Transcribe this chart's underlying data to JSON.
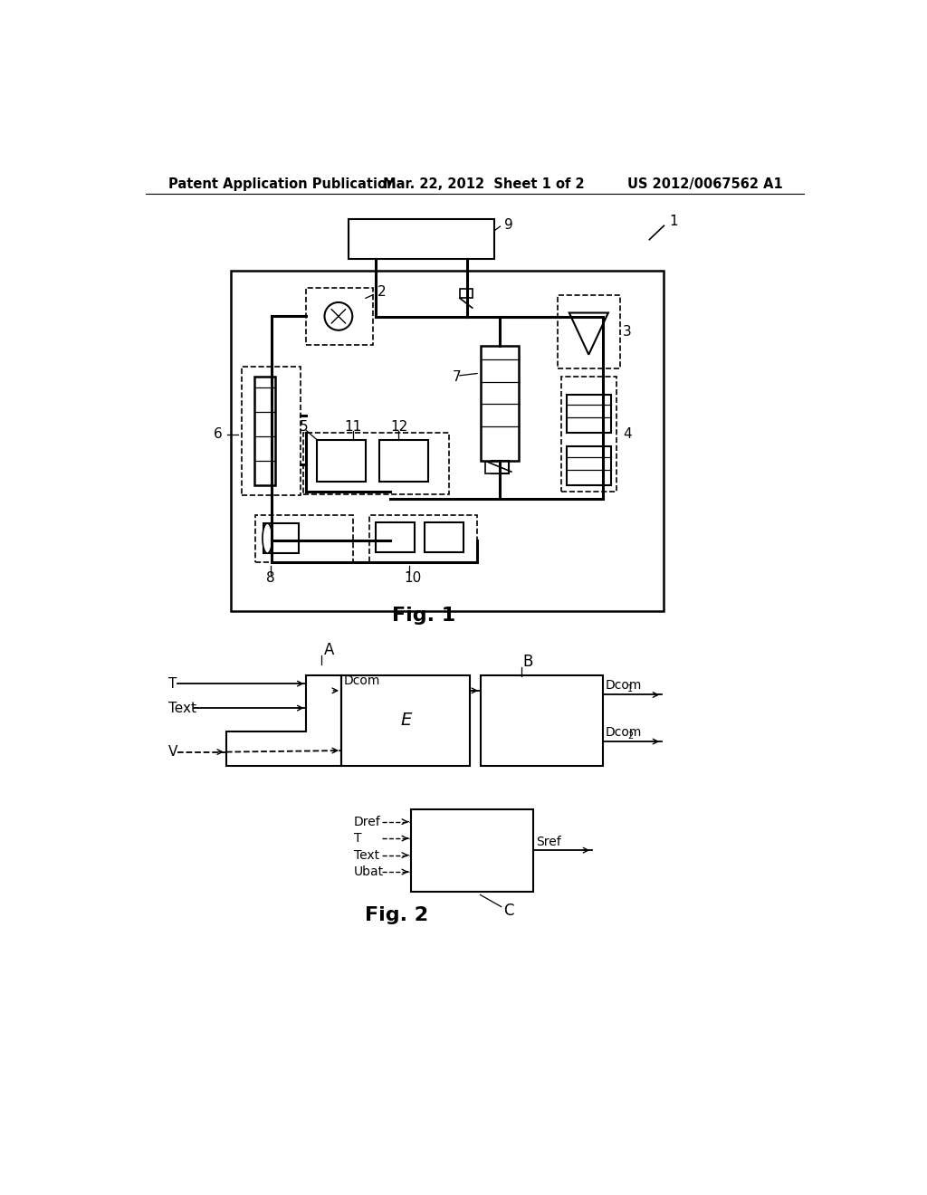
{
  "bg_color": "#ffffff",
  "header_left": "Patent Application Publication",
  "header_center": "Mar. 22, 2012  Sheet 1 of 2",
  "header_right": "US 2012/0067562 A1",
  "fig1_label": "Fig. 1",
  "fig2_label": "Fig. 2"
}
